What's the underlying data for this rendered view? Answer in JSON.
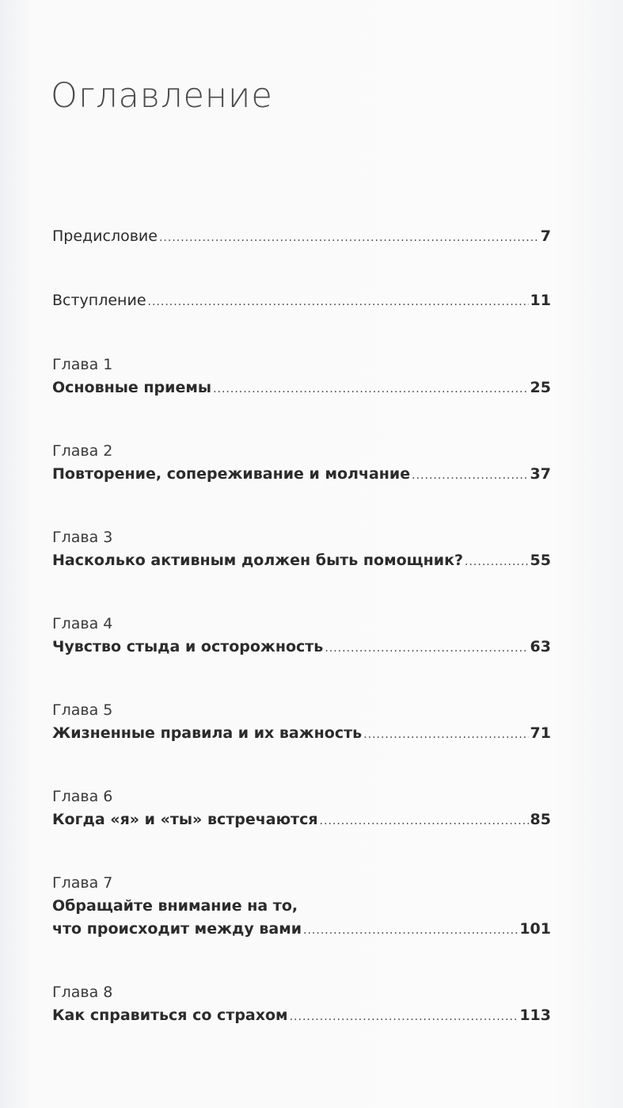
{
  "title": "Оглавление",
  "entries": [
    {
      "chapter": "",
      "lines": [
        "Предисловие"
      ],
      "page": "7",
      "bold": false
    },
    {
      "chapter": "",
      "lines": [
        "Вступление"
      ],
      "page": "11",
      "bold": false
    },
    {
      "chapter": "Глава 1",
      "lines": [
        "Основные приемы"
      ],
      "page": "25",
      "bold": true
    },
    {
      "chapter": "Глава 2",
      "lines": [
        "Повторение, сопереживание и молчание"
      ],
      "page": "37",
      "bold": true
    },
    {
      "chapter": "Глава 3",
      "lines": [
        "Насколько активным должен быть помощник?"
      ],
      "page": "55",
      "bold": true
    },
    {
      "chapter": "Глава 4",
      "lines": [
        "Чувство стыда и осторожность"
      ],
      "page": "63",
      "bold": true
    },
    {
      "chapter": "Глава 5",
      "lines": [
        "Жизненные правила и их важность"
      ],
      "page": "71",
      "bold": true
    },
    {
      "chapter": "Глава 6",
      "lines": [
        "Когда «я» и «ты» встречаются"
      ],
      "page": "85",
      "bold": true
    },
    {
      "chapter": "Глава 7",
      "lines": [
        "Обращайте внимание на то,",
        "что происходит между вами"
      ],
      "page": "101",
      "bold": true
    },
    {
      "chapter": "Глава 8",
      "lines": [
        "Как справиться со страхом"
      ],
      "page": "113",
      "bold": true
    }
  ]
}
